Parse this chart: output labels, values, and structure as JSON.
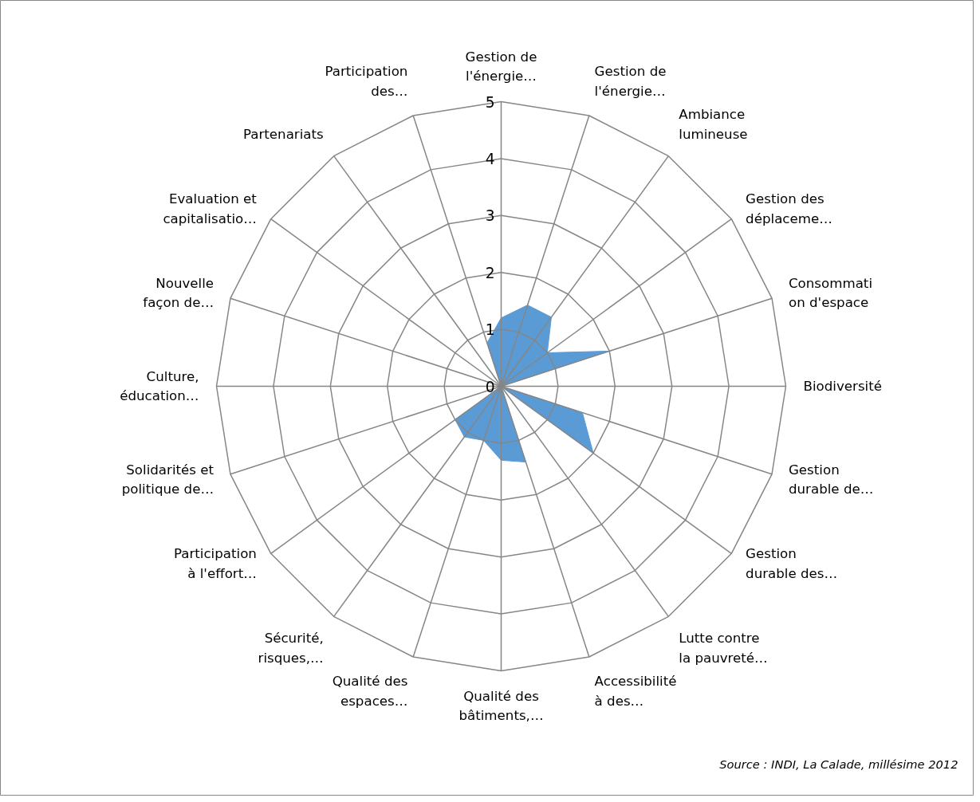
{
  "chart_data": {
    "type": "radar",
    "categories": [
      "Gestion de\nl'énergie…",
      "Gestion de\nl'énergie…",
      "Ambiance\nlumineuse",
      "Gestion des\ndéplaceme…",
      "Consommati\non d'espace",
      "Biodiversité",
      "Gestion\ndurable de…",
      "Gestion\ndurable des…",
      "Lutte contre\nla pauvreté…",
      "Accessibilité\nà des…",
      "Qualité des\nbâtiments,…",
      "Qualité des\nespaces…",
      "Sécurité,\nrisques,…",
      "Participation\nà l'effort…",
      "Solidarités et\npolitique de…",
      "Culture,\néducation…",
      "Nouvelle\nfaçon de…",
      "Evaluation et\ncapitalisatio…",
      "Partenariats",
      "Participation\ndes…"
    ],
    "series": [
      {
        "color": "#5b9bd5",
        "values": [
          1.2,
          1.5,
          1.5,
          1.0,
          2.0,
          0,
          1.5,
          2.0,
          0,
          1.4,
          1.3,
          1.0,
          1.1,
          1.0,
          0,
          0,
          0,
          0,
          0,
          0.8
        ]
      }
    ],
    "ylim": [
      0,
      5
    ],
    "yticks": [
      0,
      1,
      2,
      3,
      4,
      5
    ],
    "grid": true,
    "annotations": [
      "Source : INDI, La Calade, millésime 2012"
    ]
  }
}
